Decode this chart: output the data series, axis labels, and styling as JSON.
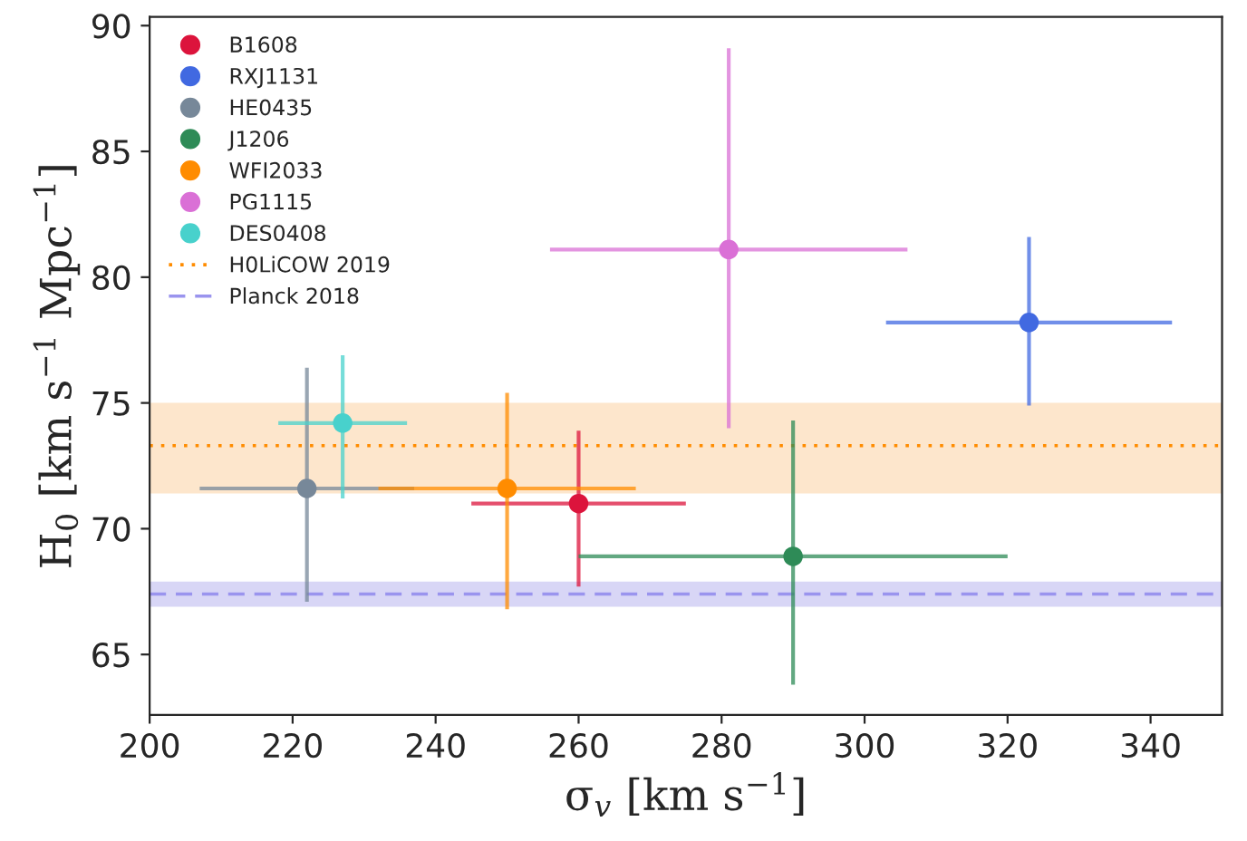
{
  "chart_data": {
    "type": "scatter",
    "xlabel": "σ$_{v}$ [km s$^{−1}$]",
    "ylabel": "H$_{0}$ [km s$^{−1}$ Mpc$^{−1}$]",
    "xlim": [
      200,
      350
    ],
    "ylim": [
      62.6,
      90.35
    ],
    "xticks": [
      200,
      220,
      240,
      260,
      280,
      300,
      320,
      340
    ],
    "yticks": [
      65,
      70,
      75,
      80,
      85,
      90
    ],
    "marker": "circle",
    "legend": "top left",
    "grid": false,
    "series": [
      {
        "name": "B1608",
        "color": "#dc143c",
        "x": [
          260
        ],
        "values": [
          71.0
        ],
        "errors": [
          [
            67.7,
            73.9
          ]
        ],
        "xerrors": [
          [
            245,
            275
          ]
        ]
      },
      {
        "name": "RXJ1131",
        "color": "#4169e1",
        "x": [
          323
        ],
        "values": [
          78.2
        ],
        "errors": [
          [
            74.9,
            81.6
          ]
        ],
        "xerrors": [
          [
            303,
            343
          ]
        ]
      },
      {
        "name": "HE0435",
        "color": "#778899",
        "x": [
          222
        ],
        "values": [
          71.6
        ],
        "errors": [
          [
            67.1,
            76.4
          ]
        ],
        "xerrors": [
          [
            207,
            237
          ]
        ]
      },
      {
        "name": "J1206",
        "color": "#2e8b57",
        "x": [
          290
        ],
        "values": [
          68.9
        ],
        "errors": [
          [
            63.8,
            74.3
          ]
        ],
        "xerrors": [
          [
            260,
            320
          ]
        ]
      },
      {
        "name": "WFI2033",
        "color": "#ff8c00",
        "x": [
          250
        ],
        "values": [
          71.6
        ],
        "errors": [
          [
            66.8,
            75.4
          ]
        ],
        "xerrors": [
          [
            232,
            268
          ]
        ]
      },
      {
        "name": "PG1115",
        "color": "#da70d6",
        "x": [
          281
        ],
        "values": [
          81.1
        ],
        "errors": [
          [
            74.0,
            89.1
          ]
        ],
        "xerrors": [
          [
            256,
            306
          ]
        ]
      },
      {
        "name": "DES0408",
        "color": "#48d1cc",
        "x": [
          227
        ],
        "values": [
          74.2
        ],
        "errors": [
          [
            71.2,
            76.9
          ]
        ],
        "xerrors": [
          [
            218,
            236
          ]
        ]
      }
    ],
    "ref_lines": [
      {
        "axis": "y",
        "value": 73.3,
        "label": "H0LiCOW 2019",
        "color": "#ff8c00",
        "line_style": "dotted"
      },
      {
        "axis": "y",
        "value": 67.4,
        "label": "Planck 2018",
        "color": "#9a94ee",
        "line_style": "dashed"
      }
    ],
    "bands": [
      {
        "axis": "y",
        "from": 71.4,
        "to": 75.0,
        "color": "#fde6cc"
      },
      {
        "axis": "y",
        "from": 66.9,
        "to": 67.9,
        "color": "#d8d6f6"
      }
    ]
  }
}
